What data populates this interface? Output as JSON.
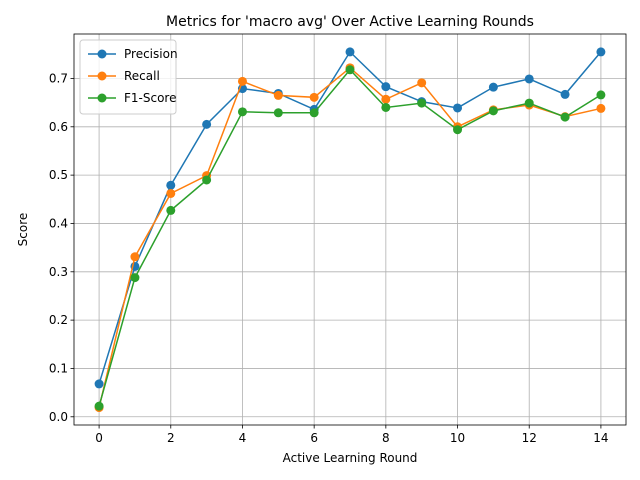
{
  "chart_data": {
    "type": "line",
    "title": "Metrics for 'macro avg' Over Active Learning Rounds",
    "xlabel": "Active Learning Round",
    "ylabel": "Score",
    "xlim": [
      -0.7,
      14.7
    ],
    "ylim": [
      -0.017,
      0.792
    ],
    "xticks": [
      0,
      2,
      4,
      6,
      8,
      10,
      12,
      14
    ],
    "yticks": [
      0.0,
      0.1,
      0.2,
      0.3,
      0.4,
      0.5,
      0.6,
      0.7
    ],
    "ytick_labels": [
      "0.0",
      "0.1",
      "0.2",
      "0.3",
      "0.4",
      "0.5",
      "0.6",
      "0.7"
    ],
    "xtick_labels": [
      "0",
      "2",
      "4",
      "6",
      "8",
      "10",
      "12",
      "14"
    ],
    "grid": true,
    "legend_position": "upper-left",
    "x": [
      0,
      1,
      2,
      3,
      4,
      5,
      6,
      7,
      8,
      9,
      10,
      11,
      12,
      13,
      14
    ],
    "series": [
      {
        "name": "Precision",
        "color": "#1f77b4",
        "values": [
          0.068,
          0.311,
          0.479,
          0.605,
          0.679,
          0.669,
          0.636,
          0.755,
          0.683,
          0.652,
          0.639,
          0.682,
          0.699,
          0.667,
          0.755
        ]
      },
      {
        "name": "Recall",
        "color": "#ff7f0e",
        "values": [
          0.019,
          0.331,
          0.462,
          0.499,
          0.694,
          0.665,
          0.661,
          0.722,
          0.657,
          0.691,
          0.6,
          0.635,
          0.645,
          0.621,
          0.638
        ]
      },
      {
        "name": "F1-Score",
        "color": "#2ca02c",
        "values": [
          0.022,
          0.288,
          0.427,
          0.49,
          0.631,
          0.629,
          0.629,
          0.718,
          0.64,
          0.649,
          0.594,
          0.633,
          0.649,
          0.62,
          0.666
        ]
      }
    ]
  }
}
